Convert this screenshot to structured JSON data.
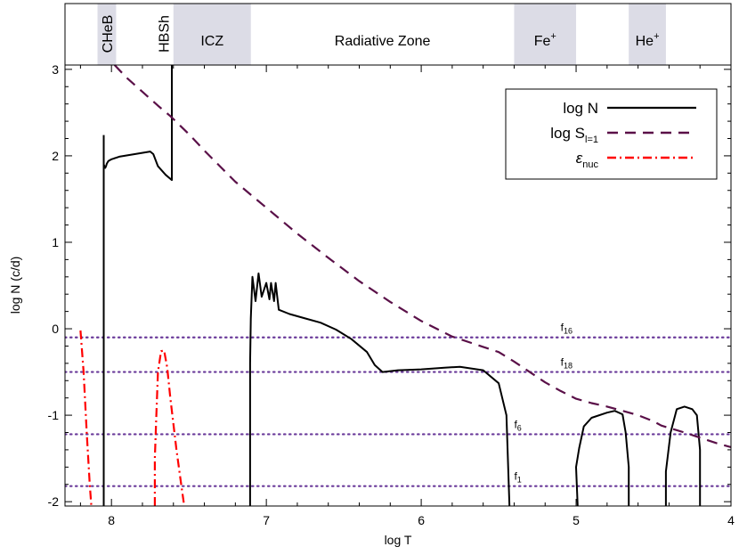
{
  "chart_data": {
    "type": "line",
    "xlabel": "log T",
    "ylabel": "log N (c/d)",
    "xlim": [
      8.3,
      4.0
    ],
    "ylim": [
      -2.05,
      3.05
    ],
    "x_reversed": true,
    "xticks": [
      8,
      7,
      6,
      5,
      4
    ],
    "yticks": [
      -2,
      -1,
      0,
      1,
      2,
      3
    ],
    "grid": false,
    "legend_position": "top-right",
    "zones": [
      {
        "label": "CHeB",
        "from": 8.09,
        "to": 7.97,
        "shaded": true,
        "vertical": true
      },
      {
        "label": "HBSh",
        "from": 7.73,
        "to": 7.6,
        "shaded": false,
        "vertical": true
      },
      {
        "label": "ICZ",
        "from": 7.6,
        "to": 7.1,
        "shaded": true,
        "vertical": false
      },
      {
        "label": "Radiative Zone",
        "from": 7.1,
        "to": 5.4,
        "shaded": false,
        "vertical": false
      },
      {
        "label": "Fe",
        "sup": "+",
        "from": 5.4,
        "to": 5.0,
        "shaded": true,
        "vertical": false
      },
      {
        "label": "He",
        "sup": "+",
        "from": 4.66,
        "to": 4.42,
        "shaded": true,
        "vertical": false
      }
    ],
    "series": [
      {
        "name": "log N",
        "style": "solid",
        "color": "#000000",
        "segments": [
          [
            [
              8.05,
              -2.05
            ],
            [
              8.05,
              -0.9
            ],
            [
              8.05,
              1.9
            ],
            [
              8.04,
              1.86
            ],
            [
              8.035,
              1.88
            ],
            [
              8.03,
              1.91
            ],
            [
              8.02,
              1.94
            ],
            [
              8.0,
              1.96
            ],
            [
              7.95,
              1.99
            ],
            [
              7.85,
              2.02
            ],
            [
              7.75,
              2.05
            ],
            [
              7.73,
              2.02
            ],
            [
              7.7,
              1.88
            ],
            [
              7.65,
              1.78
            ],
            [
              7.61,
              1.72
            ],
            [
              7.61,
              3.05
            ]
          ],
          [
            [
              8.05,
              2.24
            ],
            [
              8.05,
              1.9
            ]
          ],
          [
            [
              7.105,
              -2.05
            ],
            [
              7.105,
              -0.4
            ],
            [
              7.1,
              0.12
            ],
            [
              7.09,
              0.6
            ],
            [
              7.07,
              0.32
            ],
            [
              7.05,
              0.64
            ],
            [
              7.03,
              0.37
            ],
            [
              7.0,
              0.53
            ],
            [
              6.98,
              0.34
            ],
            [
              6.97,
              0.53
            ],
            [
              6.95,
              0.32
            ],
            [
              6.94,
              0.53
            ],
            [
              6.92,
              0.22
            ],
            [
              6.85,
              0.17
            ],
            [
              6.75,
              0.12
            ],
            [
              6.65,
              0.07
            ],
            [
              6.55,
              -0.01
            ],
            [
              6.45,
              -0.12
            ],
            [
              6.35,
              -0.27
            ],
            [
              6.3,
              -0.42
            ],
            [
              6.25,
              -0.5
            ],
            [
              6.15,
              -0.48
            ],
            [
              6.0,
              -0.47
            ],
            [
              5.85,
              -0.45
            ],
            [
              5.75,
              -0.44
            ],
            [
              5.6,
              -0.48
            ],
            [
              5.5,
              -0.63
            ],
            [
              5.45,
              -1.0
            ],
            [
              5.43,
              -2.05
            ]
          ],
          [
            [
              4.99,
              -2.05
            ],
            [
              5.0,
              -1.6
            ],
            [
              4.98,
              -1.38
            ],
            [
              4.95,
              -1.13
            ],
            [
              4.9,
              -1.03
            ],
            [
              4.8,
              -0.97
            ],
            [
              4.75,
              -0.95
            ],
            [
              4.7,
              -0.99
            ],
            [
              4.68,
              -1.2
            ],
            [
              4.66,
              -1.6
            ],
            [
              4.66,
              -2.05
            ]
          ],
          [
            [
              4.42,
              -2.05
            ],
            [
              4.42,
              -1.65
            ],
            [
              4.39,
              -1.2
            ],
            [
              4.35,
              -0.93
            ],
            [
              4.3,
              -0.9
            ],
            [
              4.25,
              -0.93
            ],
            [
              4.22,
              -1.0
            ],
            [
              4.2,
              -1.4
            ],
            [
              4.2,
              -2.05
            ]
          ]
        ]
      },
      {
        "name": "log S",
        "name_sub": "l=1",
        "style": "dashed",
        "color": "#5a1048",
        "segments": [
          [
            [
              7.98,
              3.05
            ],
            [
              7.9,
              2.9
            ],
            [
              7.8,
              2.74
            ],
            [
              7.7,
              2.58
            ],
            [
              7.62,
              2.46
            ],
            [
              7.5,
              2.25
            ],
            [
              7.4,
              2.06
            ],
            [
              7.3,
              1.88
            ],
            [
              7.2,
              1.7
            ],
            [
              7.1,
              1.55
            ],
            [
              7.0,
              1.4
            ],
            [
              6.8,
              1.1
            ],
            [
              6.6,
              0.82
            ],
            [
              6.4,
              0.55
            ],
            [
              6.2,
              0.31
            ],
            [
              6.0,
              0.09
            ],
            [
              5.8,
              -0.09
            ],
            [
              5.6,
              -0.21
            ],
            [
              5.5,
              -0.27
            ],
            [
              5.4,
              -0.38
            ],
            [
              5.3,
              -0.5
            ],
            [
              5.2,
              -0.62
            ],
            [
              5.1,
              -0.72
            ],
            [
              5.0,
              -0.81
            ],
            [
              4.9,
              -0.86
            ],
            [
              4.8,
              -0.9
            ],
            [
              4.7,
              -0.95
            ],
            [
              4.6,
              -1.0
            ],
            [
              4.5,
              -1.07
            ],
            [
              4.45,
              -1.12
            ],
            [
              4.3,
              -1.2
            ],
            [
              4.2,
              -1.26
            ],
            [
              4.1,
              -1.32
            ],
            [
              4.0,
              -1.37
            ]
          ]
        ]
      },
      {
        "name": "ε",
        "name_sub": "nuc",
        "style": "dashdot",
        "color": "#ff0000",
        "segments": [
          [
            [
              8.2,
              -0.02
            ],
            [
              8.18,
              -0.5
            ],
            [
              8.16,
              -1.2
            ],
            [
              8.14,
              -1.8
            ],
            [
              8.13,
              -2.05
            ]
          ],
          [
            [
              7.72,
              -2.05
            ],
            [
              7.72,
              -1.5
            ],
            [
              7.71,
              -1.0
            ],
            [
              7.7,
              -0.5
            ],
            [
              7.68,
              -0.26
            ],
            [
              7.66,
              -0.25
            ],
            [
              7.64,
              -0.45
            ],
            [
              7.62,
              -0.8
            ],
            [
              7.58,
              -1.4
            ],
            [
              7.55,
              -1.8
            ],
            [
              7.53,
              -2.05
            ]
          ]
        ]
      }
    ],
    "reference_lines": [
      {
        "label": "f",
        "sub": "16",
        "y": -0.1,
        "label_x": 5.1
      },
      {
        "label": "f",
        "sub": "18",
        "y": -0.5,
        "label_x": 5.1
      },
      {
        "label": "f",
        "sub": "6",
        "y": -1.22,
        "label_x": 5.4
      },
      {
        "label": "f",
        "sub": "1",
        "y": -1.82,
        "label_x": 5.4
      }
    ]
  },
  "colors": {
    "zone_shade": "#dcdce6",
    "reference": "#6a3a9a"
  }
}
